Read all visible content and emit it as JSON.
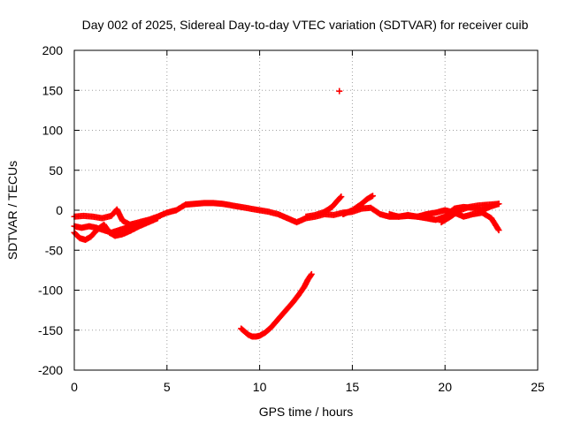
{
  "chart_data": {
    "type": "scatter",
    "title": "Day 002 of 2025, Sidereal Day-to-day VTEC variation (SDTVAR) for receiver cuib",
    "xlabel": "GPS time / hours",
    "ylabel": "SDTVAR / TECUs",
    "xlim": [
      0,
      25
    ],
    "ylim": [
      -200,
      200
    ],
    "xticks": [
      0,
      5,
      10,
      15,
      20,
      25
    ],
    "yticks": [
      -200,
      -150,
      -100,
      -50,
      0,
      50,
      100,
      150,
      200
    ],
    "grid": true,
    "marker": "plus",
    "color": "#ff0000",
    "series": [
      {
        "name": "main-band",
        "points": [
          [
            0,
            -8
          ],
          [
            0.5,
            -7
          ],
          [
            1,
            -8
          ],
          [
            1.5,
            -10
          ],
          [
            2,
            -7
          ],
          [
            2.3,
            1
          ],
          [
            2.6,
            -13
          ],
          [
            3,
            -18
          ],
          [
            3.5,
            -15
          ],
          [
            4,
            -12
          ],
          [
            4.5,
            -8
          ],
          [
            5,
            -3
          ],
          [
            5.5,
            0
          ],
          [
            6,
            7
          ],
          [
            6.5,
            8
          ],
          [
            7,
            9
          ],
          [
            7.5,
            9
          ],
          [
            8,
            8
          ],
          [
            8.5,
            6
          ],
          [
            9,
            4
          ],
          [
            9.5,
            2
          ],
          [
            10,
            0
          ],
          [
            10.5,
            -2
          ],
          [
            11,
            -5
          ],
          [
            11.5,
            -10
          ],
          [
            12,
            -15
          ],
          [
            12.5,
            -10
          ],
          [
            13,
            -8
          ],
          [
            13.5,
            -5
          ],
          [
            14,
            -6
          ],
          [
            14.5,
            -3
          ],
          [
            15,
            -2
          ],
          [
            15.5,
            2
          ],
          [
            16,
            3
          ],
          [
            16.5,
            -5
          ],
          [
            17,
            -8
          ],
          [
            17.5,
            -8
          ],
          [
            18,
            -7
          ],
          [
            18.5,
            -8
          ],
          [
            19,
            -10
          ],
          [
            19.5,
            -12
          ],
          [
            20,
            -8
          ],
          [
            20.5,
            2
          ],
          [
            21,
            4
          ],
          [
            21.5,
            3
          ],
          [
            22,
            0
          ],
          [
            22.5,
            5
          ],
          [
            22.9,
            8
          ]
        ]
      },
      {
        "name": "lower-branch",
        "points": [
          [
            0,
            -28
          ],
          [
            0.3,
            -35
          ],
          [
            0.6,
            -37
          ],
          [
            0.9,
            -33
          ],
          [
            1.2,
            -25
          ],
          [
            1.6,
            -18
          ],
          [
            1.9,
            -28
          ],
          [
            2.2,
            -32
          ],
          [
            2.6,
            -30
          ],
          [
            3,
            -26
          ],
          [
            3.5,
            -20
          ],
          [
            4,
            -15
          ],
          [
            4.5,
            -10
          ]
        ]
      },
      {
        "name": "branch-2",
        "points": [
          [
            0,
            -20
          ],
          [
            0.4,
            -22
          ],
          [
            0.8,
            -20
          ],
          [
            1.2,
            -22
          ],
          [
            1.6,
            -25
          ],
          [
            2,
            -28
          ],
          [
            2.4,
            -25
          ],
          [
            2.8,
            -22
          ],
          [
            3.2,
            -18
          ]
        ]
      },
      {
        "name": "rising-branch-a",
        "points": [
          [
            12.5,
            -8
          ],
          [
            13,
            -6
          ],
          [
            13.5,
            -2
          ],
          [
            13.9,
            4
          ],
          [
            14.2,
            12
          ],
          [
            14.4,
            17
          ]
        ]
      },
      {
        "name": "rising-branch-b",
        "points": [
          [
            14.5,
            -5
          ],
          [
            15,
            0
          ],
          [
            15.5,
            8
          ],
          [
            15.8,
            14
          ],
          [
            16.1,
            18
          ]
        ]
      },
      {
        "name": "right-lower-branch",
        "points": [
          [
            17,
            -5
          ],
          [
            17.5,
            -8
          ],
          [
            18,
            -6
          ],
          [
            18.5,
            -8
          ],
          [
            19,
            -5
          ],
          [
            19.5,
            -3
          ],
          [
            20,
            0
          ],
          [
            20.5,
            -3
          ],
          [
            21,
            -8
          ],
          [
            21.5,
            -5
          ],
          [
            22,
            -3
          ],
          [
            22.5,
            -10
          ],
          [
            22.9,
            -25
          ]
        ]
      },
      {
        "name": "right-upper-branch",
        "points": [
          [
            19.8,
            -15
          ],
          [
            20.3,
            -8
          ],
          [
            20.8,
            0
          ],
          [
            21.3,
            4
          ],
          [
            21.8,
            6
          ],
          [
            22.4,
            7
          ],
          [
            22.9,
            8
          ]
        ]
      },
      {
        "name": "dip-curve",
        "points": [
          [
            9,
            -148
          ],
          [
            9.2,
            -152
          ],
          [
            9.4,
            -156
          ],
          [
            9.6,
            -158
          ],
          [
            9.8,
            -158
          ],
          [
            10,
            -157
          ],
          [
            10.3,
            -153
          ],
          [
            10.6,
            -147
          ],
          [
            10.9,
            -139
          ],
          [
            11.2,
            -131
          ],
          [
            11.5,
            -123
          ],
          [
            11.8,
            -115
          ],
          [
            12.1,
            -106
          ],
          [
            12.4,
            -96
          ],
          [
            12.6,
            -87
          ],
          [
            12.8,
            -80
          ]
        ]
      },
      {
        "name": "outlier",
        "points": [
          [
            14.3,
            149
          ]
        ]
      }
    ]
  }
}
